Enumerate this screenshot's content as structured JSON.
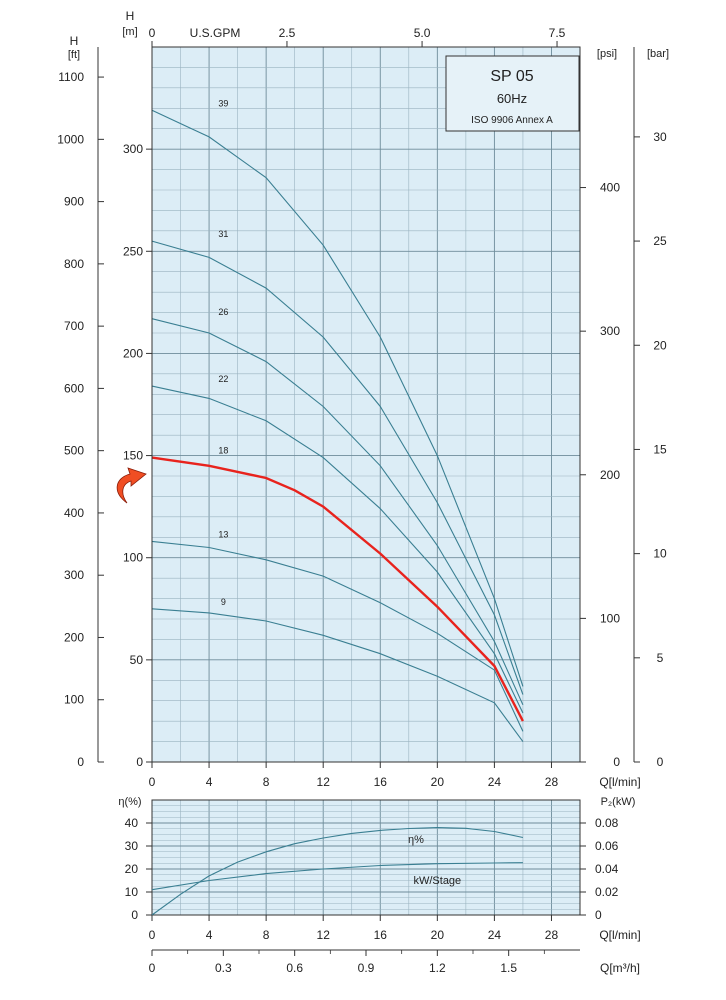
{
  "chart_data": [
    {
      "type": "line",
      "title": "SP 05",
      "subtitle": "60Hz",
      "standard": "ISO 9906 Annex A",
      "xlabel": "Q[l/min]",
      "ylabel": "H [m]",
      "xlim": [
        0,
        30
      ],
      "ylim": [
        0,
        350
      ],
      "x_ticks": [
        0,
        4,
        8,
        12,
        16,
        20,
        24,
        28
      ],
      "y_ticks": [
        0,
        50,
        100,
        150,
        200,
        250,
        300
      ],
      "grid": true,
      "axes": {
        "head_ft": {
          "label_top": "H",
          "label_unit": "[ft]",
          "ticks": [
            0,
            100,
            200,
            300,
            400,
            500,
            600,
            700,
            800,
            900,
            1000,
            1100
          ]
        },
        "head_m": {
          "label_top": "H",
          "label_unit": "[m]"
        },
        "gpm": {
          "label": "U.S.GPM",
          "ticks": [
            "0",
            "2.5",
            "5.0",
            "7.5"
          ],
          "tick_values_lpm": [
            0,
            9.46,
            18.93,
            28.39
          ]
        },
        "psi": {
          "label": "[psi]",
          "ticks": [
            0,
            100,
            200,
            300,
            400
          ],
          "tick_values_m": [
            0,
            70.3,
            140.6,
            210.9,
            281.2
          ]
        },
        "bar": {
          "label": "[bar]",
          "ticks": [
            0,
            5,
            10,
            15,
            20,
            25,
            30
          ],
          "tick_values_m": [
            0,
            51,
            102,
            153,
            204,
            255,
            306
          ]
        }
      },
      "highlight_color": "#e8231d",
      "curve_color": "#3a7f92",
      "series": [
        {
          "name": "39",
          "x": [
            0,
            4,
            8,
            12,
            16,
            20,
            24,
            26
          ],
          "y": [
            319,
            306,
            286,
            253,
            208,
            150,
            80,
            37
          ],
          "highlight": false
        },
        {
          "name": "31",
          "x": [
            0,
            4,
            8,
            12,
            16,
            20,
            24,
            26
          ],
          "y": [
            255,
            247,
            232,
            208,
            174,
            127,
            72,
            33
          ],
          "highlight": false
        },
        {
          "name": "26",
          "x": [
            0,
            4,
            8,
            12,
            16,
            20,
            24,
            26
          ],
          "y": [
            217,
            210,
            196,
            174,
            145,
            106,
            59,
            28
          ],
          "highlight": false
        },
        {
          "name": "22",
          "x": [
            0,
            4,
            8,
            12,
            16,
            20,
            24,
            26
          ],
          "y": [
            184,
            178,
            167,
            149,
            124,
            93,
            53,
            24
          ],
          "highlight": false
        },
        {
          "name": "18",
          "x": [
            0,
            4,
            8,
            10,
            12,
            16,
            20,
            24,
            26
          ],
          "y": [
            149,
            145,
            139,
            133,
            125,
            102,
            76,
            47,
            20
          ],
          "highlight": true
        },
        {
          "name": "13",
          "x": [
            0,
            4,
            8,
            12,
            16,
            20,
            24,
            26
          ],
          "y": [
            108,
            105,
            99,
            91,
            78,
            63,
            45,
            15
          ],
          "highlight": false
        },
        {
          "name": "9",
          "x": [
            0,
            4,
            8,
            12,
            16,
            20,
            24,
            26
          ],
          "y": [
            75,
            73,
            69,
            62,
            53,
            42,
            29,
            10
          ],
          "highlight": false
        }
      ]
    },
    {
      "type": "line",
      "xlabel": "Q[l/min]",
      "ylabel_left": "η(%)",
      "ylabel_right": "P₂(kW)",
      "xlim": [
        0,
        30
      ],
      "ylim": [
        0,
        50
      ],
      "x_ticks": [
        0,
        4,
        8,
        12,
        16,
        20,
        24,
        28
      ],
      "y_ticks_left": [
        0,
        10,
        20,
        30,
        40
      ],
      "y_ticks_right": [
        "0",
        "0.02",
        "0.04",
        "0.06",
        "0.08"
      ],
      "q_m3h": {
        "label": "Q[m³/h]",
        "ticks": [
          "0",
          "0.3",
          "0.6",
          "0.9",
          "1.2",
          "1.5"
        ],
        "tick_values_lpm": [
          0,
          5,
          10,
          15,
          20,
          25
        ]
      },
      "grid": true,
      "series": [
        {
          "name": "η%",
          "x": [
            0,
            2,
            4,
            6,
            8,
            10,
            12,
            14,
            16,
            18,
            20,
            22,
            24,
            26
          ],
          "y": [
            0,
            9,
            17,
            23,
            27.5,
            31,
            33.5,
            35.5,
            36.8,
            37.6,
            38,
            37.7,
            36.3,
            33.7
          ]
        },
        {
          "name": "kW/Stage",
          "unit": "kW",
          "x": [
            0,
            4,
            8,
            12,
            16,
            20,
            24,
            26
          ],
          "y": [
            0.022,
            0.03,
            0.036,
            0.04,
            0.043,
            0.0446,
            0.0452,
            0.0455
          ]
        }
      ]
    }
  ]
}
